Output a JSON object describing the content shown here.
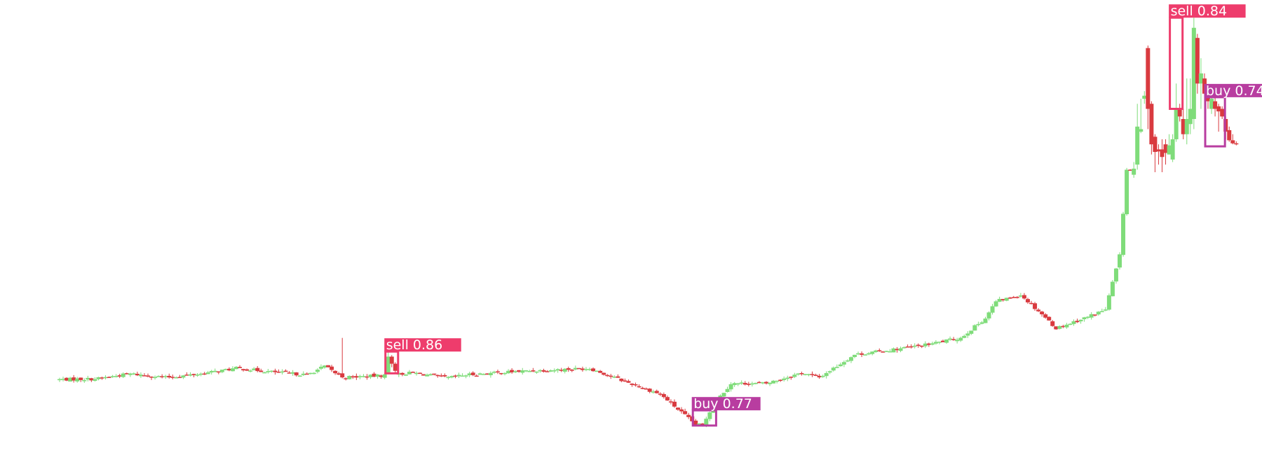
{
  "chart_data": {
    "type": "candlestick",
    "title": "",
    "xlabel": "",
    "ylabel": "",
    "grid": false,
    "legend": "none",
    "colors": {
      "up": "#7fdc7a",
      "down": "#d93a3f",
      "sell_box": "#ee3c6c",
      "buy_box": "#b83da0"
    },
    "anchors": [
      [
        0,
        98.6
      ],
      [
        10,
        98.7
      ],
      [
        20,
        99.7
      ],
      [
        30,
        99.0
      ],
      [
        40,
        99.7
      ],
      [
        50,
        100.8
      ],
      [
        60,
        100.1
      ],
      [
        70,
        99.5
      ],
      [
        75,
        101.2
      ],
      [
        80,
        99.0
      ],
      [
        90,
        99.3
      ],
      [
        100,
        99.9
      ],
      [
        110,
        98.9
      ],
      [
        115,
        99.5
      ],
      [
        130,
        100.2
      ],
      [
        150,
        100.8
      ],
      [
        160,
        98.2
      ],
      [
        170,
        95.7
      ],
      [
        180,
        89.7
      ],
      [
        182,
        89.6
      ],
      [
        185,
        93.7
      ],
      [
        190,
        97.8
      ],
      [
        200,
        97.8
      ],
      [
        210,
        99.9
      ],
      [
        215,
        99.0
      ],
      [
        225,
        103.5
      ],
      [
        235,
        104.4
      ],
      [
        245,
        105.4
      ],
      [
        255,
        106.8
      ],
      [
        262,
        110.7
      ],
      [
        265,
        114.0
      ],
      [
        272,
        115.3
      ],
      [
        278,
        111.5
      ],
      [
        282,
        108.7
      ],
      [
        290,
        110.7
      ],
      [
        296,
        112.4
      ],
      [
        300,
        123.0
      ],
      [
        302,
        140.0
      ]
    ],
    "spikes": [
      {
        "i": 80,
        "o": 99.8,
        "h": 106.8,
        "l": 98.8,
        "c": 99.0
      },
      {
        "i": 93,
        "o": 100.0,
        "h": 104.0,
        "l": 99.6,
        "c": 103.1
      },
      {
        "i": 94,
        "o": 103.1,
        "h": 103.4,
        "l": 101.0,
        "c": 101.7
      },
      {
        "i": 95,
        "o": 101.7,
        "h": 102.0,
        "l": 99.8,
        "c": 100.3
      }
    ],
    "late_candles": [
      {
        "o": 140.0,
        "h": 140.1,
        "l": 139.8,
        "c": 139.9
      },
      {
        "o": 139.0,
        "h": 141.5,
        "l": 138.4,
        "c": 140.2
      },
      {
        "o": 141.0,
        "h": 153.0,
        "l": 140.0,
        "c": 148.5
      },
      {
        "o": 147.5,
        "h": 154.0,
        "l": 147.2,
        "c": 148.0
      },
      {
        "o": 154.0,
        "h": 155.5,
        "l": 153.0,
        "c": 154.6
      },
      {
        "o": 164.0,
        "h": 164.5,
        "l": 148.0,
        "c": 152.0
      },
      {
        "o": 153.0,
        "h": 153.5,
        "l": 143.0,
        "c": 145.0
      },
      {
        "o": 146.5,
        "h": 147.0,
        "l": 139.5,
        "c": 143.5
      },
      {
        "o": 144.0,
        "h": 145.0,
        "l": 141.0,
        "c": 143.6
      },
      {
        "o": 144.0,
        "h": 146.0,
        "l": 139.5,
        "c": 142.5
      },
      {
        "o": 145.0,
        "h": 146.0,
        "l": 141.0,
        "c": 143.3
      },
      {
        "o": 143.0,
        "h": 147.0,
        "l": 143.0,
        "c": 144.8
      },
      {
        "o": 142.0,
        "h": 147.0,
        "l": 141.5,
        "c": 146.0
      },
      {
        "o": 146.0,
        "h": 157.0,
        "l": 145.5,
        "c": 152.0
      },
      {
        "o": 152.0,
        "h": 153.0,
        "l": 149.5,
        "c": 150.5
      },
      {
        "o": 150.0,
        "h": 152.0,
        "l": 146.0,
        "c": 147.0
      },
      {
        "o": 147.0,
        "h": 158.0,
        "l": 145.0,
        "c": 150.0
      },
      {
        "o": 149.0,
        "h": 158.0,
        "l": 147.0,
        "c": 152.0
      },
      {
        "o": 150.0,
        "h": 170.0,
        "l": 148.0,
        "c": 168.0
      },
      {
        "o": 166.0,
        "h": 166.8,
        "l": 155.0,
        "c": 157.0
      },
      {
        "o": 157.0,
        "h": 162.0,
        "l": 152.0,
        "c": 159.0
      },
      {
        "o": 158.0,
        "h": 159.0,
        "l": 150.0,
        "c": 155.0
      },
      {
        "o": 155.0,
        "h": 155.5,
        "l": 152.0,
        "c": 153.5
      },
      {
        "o": 152.0,
        "h": 156.0,
        "l": 151.0,
        "c": 154.0
      },
      {
        "o": 153.5,
        "h": 156.0,
        "l": 150.5,
        "c": 152.0
      },
      {
        "o": 152.5,
        "h": 153.0,
        "l": 147.5,
        "c": 151.5
      },
      {
        "o": 152.0,
        "h": 152.5,
        "l": 150.0,
        "c": 150.5
      },
      {
        "o": 150.0,
        "h": 150.5,
        "l": 146.0,
        "c": 147.5
      },
      {
        "o": 147.8,
        "h": 148.5,
        "l": 145.5,
        "c": 145.8
      },
      {
        "o": 145.8,
        "h": 147.0,
        "l": 145.0,
        "c": 145.2
      },
      {
        "o": 145.2,
        "h": 145.6,
        "l": 144.8,
        "c": 145.0
      }
    ],
    "ylim": [
      87,
      171
    ],
    "signals": [
      {
        "label": "sell 0.86",
        "kind": "sell",
        "i_start": 93,
        "i_end": 95,
        "low": 99.8,
        "high": 104.1
      },
      {
        "label": "buy 0.77",
        "kind": "buy",
        "i_start": 180,
        "i_end": 185,
        "low": 89.5,
        "high": 92.5
      },
      {
        "label": "sell 0.84",
        "kind": "sell",
        "i_start": 315,
        "i_end": 317,
        "low": 152.0,
        "high": 170.0
      },
      {
        "label": "buy 0.74",
        "kind": "buy",
        "i_start": 325,
        "i_end": 329,
        "low": 144.6,
        "high": 154.3
      }
    ]
  }
}
